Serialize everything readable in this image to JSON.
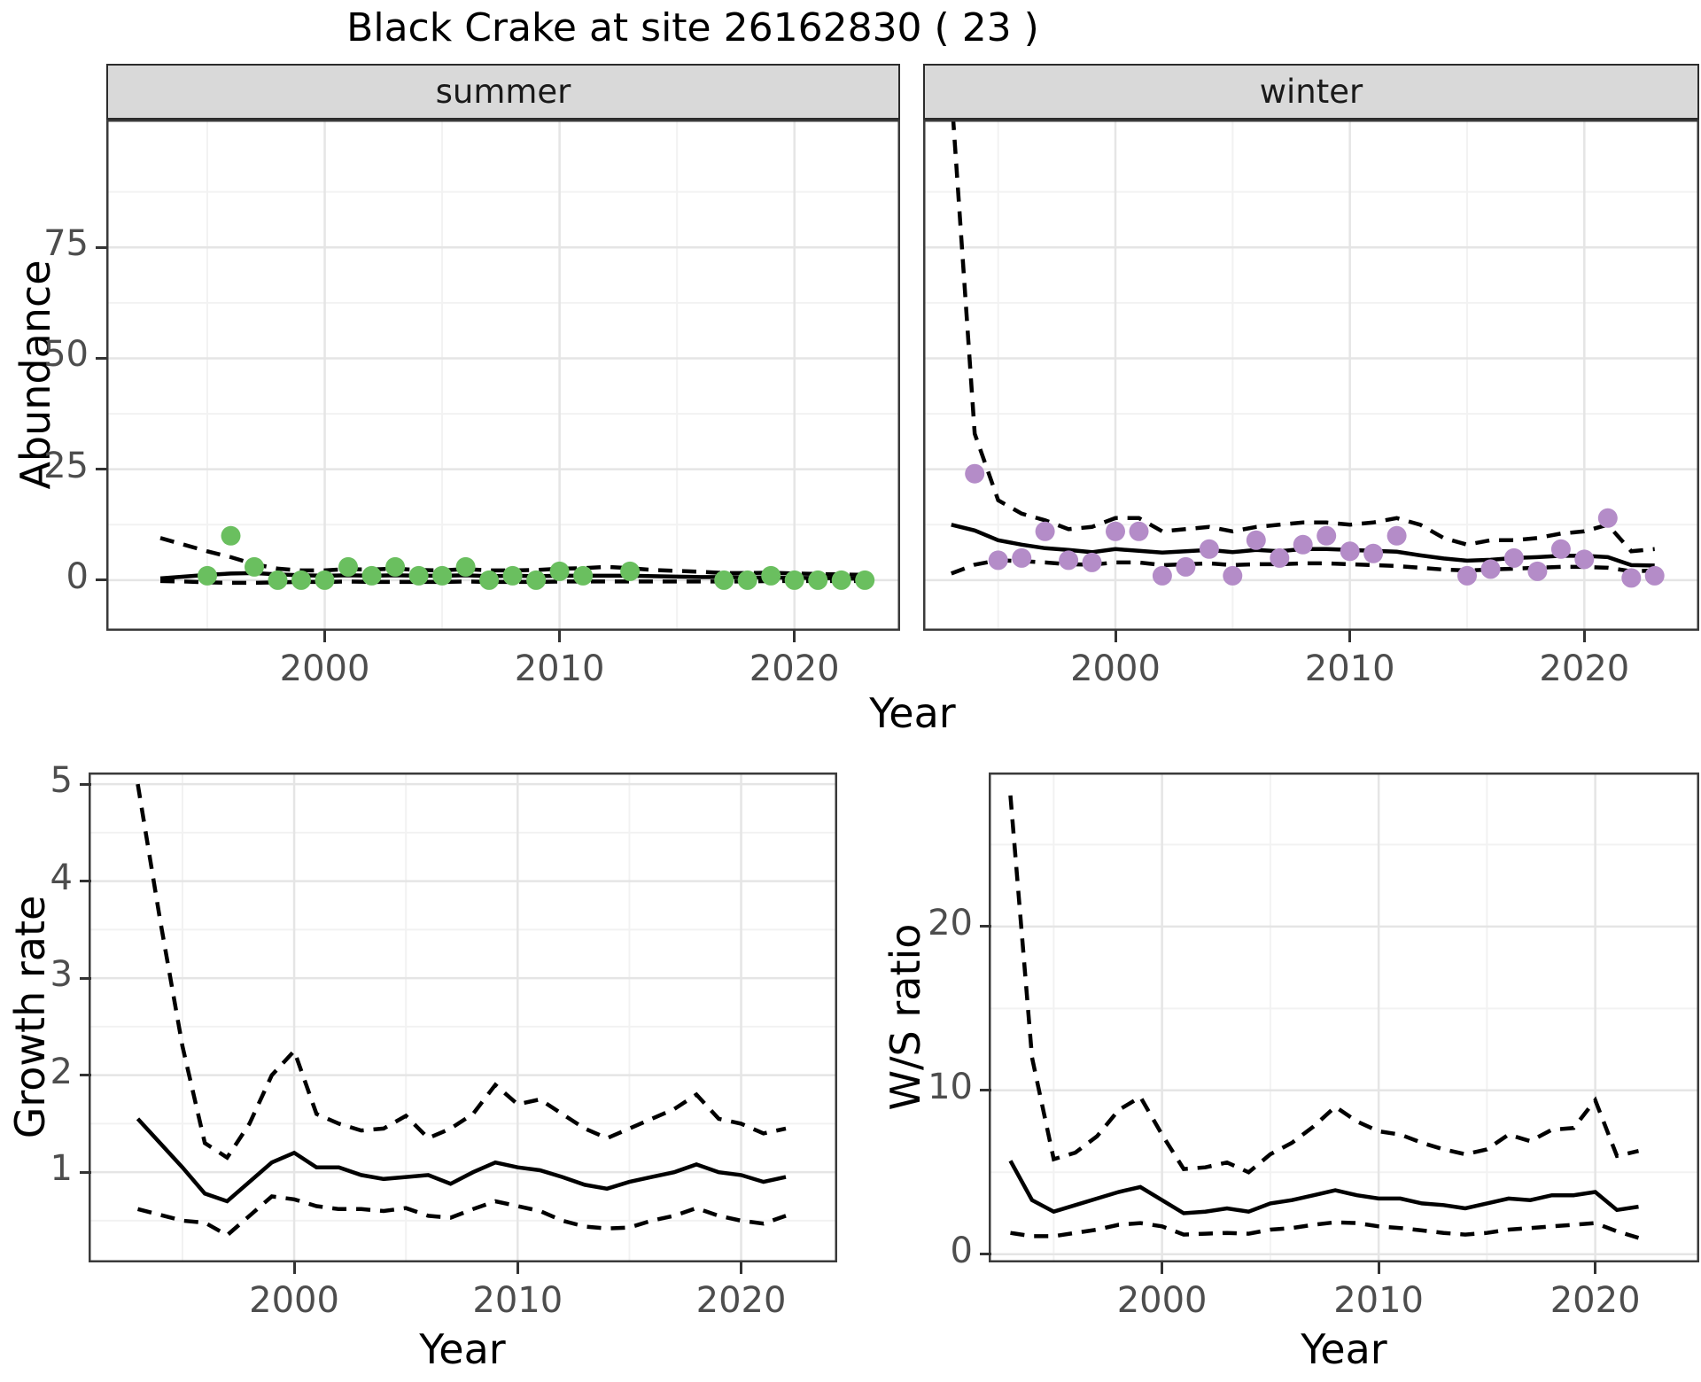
{
  "title": "Black Crake at site 26162830 ( 23 )",
  "colors": {
    "summer_point": "#6abf5f",
    "winter_point": "#b48cc8",
    "line": "#000000",
    "grid_major": "#e5e5e5",
    "grid_minor": "#f2f2f2",
    "panel_border": "#3a3a3a",
    "strip_bg": "#d9d9d9",
    "tick_text": "#4d4d4d"
  },
  "chart_data": [
    {
      "id": "summer",
      "type": "scatter",
      "facet_label": "summer",
      "xlabel": "Year",
      "ylabel": "Abundance",
      "xlim": [
        1990.7,
        2024.5
      ],
      "ylim": [
        -11.4,
        103.8
      ],
      "xticks": [
        2000,
        2010,
        2020
      ],
      "xticks_minor": [
        1995,
        2005,
        2015
      ],
      "yticks": [
        0,
        25,
        50,
        75
      ],
      "yticks_minor": [
        12.5,
        37.5,
        62.5,
        87.5
      ],
      "grid": "on",
      "point_color": "#6abf5f",
      "points": {
        "x": [
          1995,
          1996,
          1997,
          1998,
          1999,
          2000,
          2001,
          2002,
          2003,
          2004,
          2005,
          2006,
          2007,
          2008,
          2009,
          2010,
          2011,
          2013,
          2017,
          2018,
          2019,
          2020,
          2021,
          2022,
          2023
        ],
        "y": [
          1,
          10,
          3,
          0,
          0,
          0,
          3,
          1,
          3,
          1,
          1,
          3,
          0,
          1,
          0,
          2,
          1,
          2,
          0,
          0,
          1,
          0,
          0,
          0,
          0
        ]
      },
      "mean": {
        "x": [
          1993,
          1994,
          1995,
          1996,
          1997,
          1998,
          1999,
          2000,
          2001,
          2002,
          2003,
          2004,
          2005,
          2006,
          2007,
          2008,
          2009,
          2010,
          2011,
          2012,
          2013,
          2014,
          2015,
          2016,
          2017,
          2018,
          2019,
          2020,
          2021,
          2022,
          2023
        ],
        "y": [
          0.4,
          0.8,
          1.2,
          1.5,
          1.6,
          1.3,
          1.1,
          1.0,
          1.1,
          1.0,
          1.1,
          1.0,
          1.0,
          1.1,
          0.9,
          1.0,
          0.9,
          1.0,
          1.0,
          1.0,
          1.0,
          0.9,
          0.8,
          0.7,
          0.7,
          0.6,
          0.6,
          0.5,
          0.5,
          0.4,
          0.3
        ]
      },
      "upper": {
        "x": [
          1993,
          1994,
          1995,
          1996,
          1997,
          1998,
          1999,
          2000,
          2001,
          2002,
          2003,
          2004,
          2005,
          2006,
          2007,
          2008,
          2009,
          2010,
          2011,
          2012,
          2013,
          2014,
          2015,
          2016,
          2017,
          2018,
          2019,
          2020,
          2021,
          2022,
          2023
        ],
        "y": [
          9.5,
          8.0,
          6.5,
          5.2,
          3.6,
          2.6,
          2.2,
          2.2,
          2.5,
          2.4,
          2.6,
          2.3,
          2.2,
          2.5,
          2.2,
          2.2,
          2.3,
          2.6,
          2.7,
          3.0,
          2.7,
          2.3,
          2.1,
          1.9,
          1.6,
          1.6,
          1.7,
          1.5,
          1.4,
          1.3,
          1.2
        ]
      },
      "lower": {
        "x": [
          1993,
          1994,
          1995,
          1996,
          1997,
          1998,
          1999,
          2000,
          2001,
          2002,
          2003,
          2004,
          2005,
          2006,
          2007,
          2008,
          2009,
          2010,
          2011,
          2012,
          2013,
          2014,
          2015,
          2016,
          2017,
          2018,
          2019,
          2020,
          2021,
          2022,
          2023
        ],
        "y": [
          -0.2,
          -0.3,
          -0.5,
          -0.6,
          -0.6,
          -0.5,
          -0.4,
          -0.4,
          -0.3,
          -0.4,
          -0.4,
          -0.4,
          -0.4,
          -0.3,
          -0.4,
          -0.4,
          -0.4,
          -0.3,
          -0.3,
          -0.3,
          -0.3,
          -0.3,
          -0.3,
          -0.3,
          -0.3,
          -0.3,
          -0.2,
          -0.2,
          -0.2,
          -0.2,
          -0.2
        ]
      }
    },
    {
      "id": "winter",
      "type": "scatter",
      "facet_label": "winter",
      "xlabel": "Year",
      "ylabel": "Abundance",
      "xlim": [
        1991.8,
        2024.9
      ],
      "ylim": [
        -11.4,
        103.8
      ],
      "xticks": [
        2000,
        2010,
        2020
      ],
      "xticks_minor": [
        1995,
        2005,
        2015
      ],
      "yticks": [
        0,
        25,
        50,
        75
      ],
      "yticks_minor": [
        12.5,
        37.5,
        62.5,
        87.5
      ],
      "grid": "on",
      "point_color": "#b48cc8",
      "points": {
        "x": [
          1994,
          1995,
          1996,
          1997,
          1998,
          1999,
          2000,
          2001,
          2002,
          2003,
          2004,
          2005,
          2006,
          2007,
          2008,
          2009,
          2010,
          2011,
          2012,
          2015,
          2016,
          2017,
          2018,
          2019,
          2020,
          2021,
          2022,
          2023
        ],
        "y": [
          24,
          4.5,
          5,
          11,
          4.5,
          4,
          11,
          11,
          1,
          3,
          7,
          1,
          9,
          5,
          8,
          10,
          6.5,
          6,
          10,
          1,
          2.5,
          5,
          2,
          7,
          4.7,
          14,
          0.5,
          1
        ]
      },
      "mean": {
        "x": [
          1993,
          1994,
          1995,
          1996,
          1997,
          1998,
          1999,
          2000,
          2001,
          2002,
          2003,
          2004,
          2005,
          2006,
          2007,
          2008,
          2009,
          2010,
          2011,
          2012,
          2013,
          2014,
          2015,
          2016,
          2017,
          2018,
          2019,
          2020,
          2021,
          2022,
          2023
        ],
        "y": [
          12.5,
          11.2,
          9.0,
          8.0,
          7.2,
          6.8,
          6.3,
          7.0,
          6.6,
          6.2,
          6.5,
          6.8,
          6.3,
          6.8,
          6.5,
          7.0,
          7.0,
          6.8,
          6.6,
          6.4,
          5.6,
          4.9,
          4.4,
          4.6,
          5.0,
          5.2,
          5.5,
          5.5,
          5.2,
          3.4,
          3.3
        ]
      },
      "upper": {
        "x": [
          1993,
          1994,
          1995,
          1996,
          1997,
          1998,
          1999,
          2000,
          2001,
          2002,
          2003,
          2004,
          2005,
          2006,
          2007,
          2008,
          2009,
          2010,
          2011,
          2012,
          2013,
          2014,
          2015,
          2016,
          2017,
          2018,
          2019,
          2020,
          2021,
          2022,
          2023
        ],
        "y": [
          110,
          33,
          18,
          15,
          13.5,
          11.5,
          12,
          14,
          14,
          11,
          11.5,
          12,
          11,
          12,
          12.5,
          13,
          13,
          12.5,
          13,
          14,
          12.5,
          9.5,
          8,
          9,
          9,
          9.5,
          10.5,
          11,
          12.5,
          6.5,
          7
        ]
      },
      "lower": {
        "x": [
          1993,
          1994,
          1995,
          1996,
          1997,
          1998,
          1999,
          2000,
          2001,
          2002,
          2003,
          2004,
          2005,
          2006,
          2007,
          2008,
          2009,
          2010,
          2011,
          2012,
          2013,
          2014,
          2015,
          2016,
          2017,
          2018,
          2019,
          2020,
          2021,
          2022,
          2023
        ],
        "y": [
          1.5,
          3.5,
          4.5,
          4.3,
          4.0,
          3.6,
          3.5,
          4.0,
          4.0,
          3.4,
          3.6,
          3.8,
          3.4,
          3.6,
          3.6,
          3.8,
          3.8,
          3.6,
          3.4,
          3.2,
          2.8,
          2.4,
          2.2,
          2.4,
          2.6,
          2.8,
          3.0,
          3.0,
          2.8,
          2.0,
          2.2
        ]
      }
    },
    {
      "id": "growth",
      "type": "line",
      "xlabel": "Year",
      "ylabel": "Growth rate",
      "xlim": [
        1990.8,
        2024.3
      ],
      "ylim": [
        0.07,
        5.12
      ],
      "xticks": [
        2000,
        2010,
        2020
      ],
      "xticks_minor": [
        1995,
        2005,
        2015
      ],
      "yticks": [
        1,
        2,
        3,
        4,
        5
      ],
      "yticks_minor": [
        0.5,
        1.5,
        2.5,
        3.5,
        4.5
      ],
      "grid": "on",
      "mean": {
        "x": [
          1993,
          1994,
          1995,
          1996,
          1997,
          1998,
          1999,
          2000,
          2001,
          2002,
          2003,
          2004,
          2005,
          2006,
          2007,
          2008,
          2009,
          2010,
          2011,
          2012,
          2013,
          2014,
          2015,
          2016,
          2017,
          2018,
          2019,
          2020,
          2021,
          2022
        ],
        "y": [
          1.55,
          1.3,
          1.05,
          0.78,
          0.7,
          0.9,
          1.1,
          1.2,
          1.05,
          1.05,
          0.97,
          0.93,
          0.95,
          0.97,
          0.88,
          1.0,
          1.1,
          1.05,
          1.02,
          0.95,
          0.87,
          0.83,
          0.9,
          0.95,
          1.0,
          1.08,
          1.0,
          0.97,
          0.9,
          0.95
        ]
      },
      "upper": {
        "x": [
          1993,
          1994,
          1995,
          1996,
          1997,
          1998,
          1999,
          2000,
          2001,
          2002,
          2003,
          2004,
          2005,
          2006,
          2007,
          2008,
          2009,
          2010,
          2011,
          2012,
          2013,
          2014,
          2015,
          2016,
          2017,
          2018,
          2019,
          2020,
          2021,
          2022
        ],
        "y": [
          5.0,
          3.6,
          2.3,
          1.3,
          1.15,
          1.5,
          2.0,
          2.25,
          1.6,
          1.5,
          1.43,
          1.45,
          1.58,
          1.35,
          1.45,
          1.6,
          1.9,
          1.7,
          1.75,
          1.6,
          1.45,
          1.35,
          1.45,
          1.55,
          1.65,
          1.8,
          1.55,
          1.5,
          1.4,
          1.45
        ]
      },
      "lower": {
        "x": [
          1993,
          1994,
          1995,
          1996,
          1997,
          1998,
          1999,
          2000,
          2001,
          2002,
          2003,
          2004,
          2005,
          2006,
          2007,
          2008,
          2009,
          2010,
          2011,
          2012,
          2013,
          2014,
          2015,
          2016,
          2017,
          2018,
          2019,
          2020,
          2021,
          2022
        ],
        "y": [
          0.62,
          0.56,
          0.5,
          0.48,
          0.35,
          0.55,
          0.75,
          0.72,
          0.65,
          0.62,
          0.62,
          0.6,
          0.63,
          0.55,
          0.53,
          0.62,
          0.7,
          0.65,
          0.6,
          0.5,
          0.44,
          0.42,
          0.43,
          0.5,
          0.55,
          0.63,
          0.55,
          0.5,
          0.47,
          0.55
        ]
      }
    },
    {
      "id": "ws",
      "type": "line",
      "xlabel": "Year",
      "ylabel": "W/S ratio",
      "xlim": [
        1992.0,
        2024.8
      ],
      "ylim": [
        -0.5,
        29.4
      ],
      "xticks": [
        2000,
        2010,
        2020
      ],
      "xticks_minor": [
        1995,
        2005,
        2015
      ],
      "yticks": [
        0,
        10,
        20
      ],
      "yticks_minor": [
        5,
        15,
        25
      ],
      "grid": "on",
      "mean": {
        "x": [
          1993,
          1994,
          1995,
          1996,
          1997,
          1998,
          1999,
          2000,
          2001,
          2002,
          2003,
          2004,
          2005,
          2006,
          2007,
          2008,
          2009,
          2010,
          2011,
          2012,
          2013,
          2014,
          2015,
          2016,
          2017,
          2018,
          2019,
          2020,
          2021,
          2022
        ],
        "y": [
          5.7,
          3.3,
          2.6,
          3.0,
          3.4,
          3.8,
          4.1,
          3.3,
          2.5,
          2.6,
          2.8,
          2.6,
          3.1,
          3.3,
          3.6,
          3.9,
          3.6,
          3.4,
          3.4,
          3.1,
          3.0,
          2.8,
          3.1,
          3.4,
          3.3,
          3.6,
          3.6,
          3.8,
          2.7,
          2.9
        ]
      },
      "upper": {
        "x": [
          1993,
          1994,
          1995,
          1996,
          1997,
          1998,
          1999,
          2000,
          2001,
          2002,
          2003,
          2004,
          2005,
          2006,
          2007,
          2008,
          2009,
          2010,
          2011,
          2012,
          2013,
          2014,
          2015,
          2016,
          2017,
          2018,
          2019,
          2020,
          2021,
          2022
        ],
        "y": [
          28,
          12,
          5.8,
          6.2,
          7.2,
          8.8,
          9.6,
          7.3,
          5.2,
          5.3,
          5.6,
          5.0,
          6.1,
          6.8,
          7.8,
          9.0,
          8.1,
          7.5,
          7.3,
          6.8,
          6.4,
          6.1,
          6.4,
          7.3,
          6.9,
          7.6,
          7.7,
          9.4,
          6.0,
          6.3
        ]
      },
      "lower": {
        "x": [
          1993,
          1994,
          1995,
          1996,
          1997,
          1998,
          1999,
          2000,
          2001,
          2002,
          2003,
          2004,
          2005,
          2006,
          2007,
          2008,
          2009,
          2010,
          2011,
          2012,
          2013,
          2014,
          2015,
          2016,
          2017,
          2018,
          2019,
          2020,
          2021,
          2022
        ],
        "y": [
          1.3,
          1.1,
          1.1,
          1.3,
          1.5,
          1.8,
          1.9,
          1.7,
          1.2,
          1.25,
          1.3,
          1.25,
          1.5,
          1.6,
          1.8,
          1.95,
          1.9,
          1.7,
          1.6,
          1.45,
          1.3,
          1.2,
          1.3,
          1.5,
          1.6,
          1.7,
          1.8,
          1.9,
          1.4,
          1.0
        ]
      }
    }
  ]
}
